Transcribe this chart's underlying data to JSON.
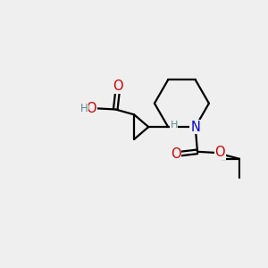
{
  "bg_color": "#efefef",
  "bond_color": "#000000",
  "bond_lw": 1.6,
  "atom_colors": {
    "O": "#cc0000",
    "N": "#0000cc",
    "H": "#5a8a8a",
    "C": "#000000"
  },
  "font_size": 9.5,
  "figsize": [
    3.0,
    3.0
  ],
  "dpi": 100
}
